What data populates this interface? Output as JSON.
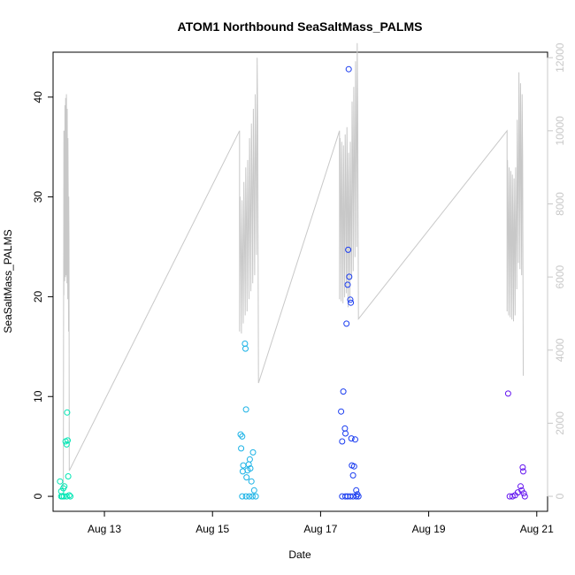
{
  "chart_data": {
    "type": "scatter",
    "title": "ATOM1 Northbound SeaSaltMass_PALMS",
    "xlabel": "Date",
    "ylabel": "SeaSaltMass_PALMS",
    "xlim": [
      12.05,
      21.2
    ],
    "ylim": [
      -1.5,
      44.5
    ],
    "right_ylim": [
      -410,
      12150
    ],
    "x_ticks": [
      {
        "value": 13,
        "label": "Aug 13"
      },
      {
        "value": 15,
        "label": "Aug 15"
      },
      {
        "value": 17,
        "label": "Aug 17"
      },
      {
        "value": 19,
        "label": "Aug 19"
      },
      {
        "value": 21,
        "label": "Aug 21"
      }
    ],
    "y_ticks": [
      0,
      10,
      20,
      30,
      40
    ],
    "right_y_ticks": [
      0,
      2000,
      4000,
      6000,
      8000,
      10000,
      12000
    ],
    "grid": false,
    "colors": {
      "line": "#c8c8c8",
      "flight1": "#00e6b4",
      "flight2": "#1ab2e6",
      "flight3": "#1a3cf0",
      "flight4": "#6414f0"
    },
    "altitude_track": [
      {
        "flight": 1,
        "x_start": 12.25,
        "x_end": 12.35,
        "peaks": [
          10000,
          10700,
          10900,
          11000,
          10600,
          9800,
          8200
        ],
        "end_value": 700
      },
      {
        "flight": 2,
        "x_start": 15.5,
        "x_end": 15.85,
        "peaks": [
          8200,
          8100,
          8600,
          9000,
          9200,
          9800,
          10200,
          10600,
          11000,
          12000
        ],
        "end_value": 3100
      },
      {
        "flight": 3,
        "x_start": 17.35,
        "x_end": 17.7,
        "peaks": [
          9800,
          9700,
          9600,
          9900,
          10100,
          9400,
          9700,
          10800,
          11200,
          11900,
          12400
        ],
        "end_value": 4850
      },
      {
        "flight": 4,
        "x_start": 20.45,
        "x_end": 20.75,
        "peaks": [
          9200,
          9000,
          8900,
          8800,
          8700,
          9000,
          10300,
          11600,
          11300,
          11000
        ],
        "end_value": 3300
      }
    ],
    "series": [
      {
        "name": "",
        "color": "#00e6b4",
        "points": [
          [
            12.18,
            1.5
          ],
          [
            12.2,
            0.5
          ],
          [
            12.22,
            0.0
          ],
          [
            12.24,
            0.8
          ],
          [
            12.26,
            1.0
          ],
          [
            12.28,
            5.5
          ],
          [
            12.3,
            5.2
          ],
          [
            12.31,
            8.4
          ],
          [
            12.32,
            5.6
          ],
          [
            12.33,
            2.0
          ],
          [
            12.35,
            0.1
          ],
          [
            12.37,
            0.0
          ],
          [
            12.2,
            0.0
          ],
          [
            12.25,
            0.0
          ],
          [
            12.3,
            0.0
          ]
        ]
      },
      {
        "name": "",
        "color": "#1ab2e6",
        "points": [
          [
            15.52,
            6.2
          ],
          [
            15.53,
            4.8
          ],
          [
            15.55,
            6.0
          ],
          [
            15.56,
            2.5
          ],
          [
            15.57,
            3.1
          ],
          [
            15.6,
            15.3
          ],
          [
            15.61,
            14.8
          ],
          [
            15.62,
            8.7
          ],
          [
            15.63,
            1.9
          ],
          [
            15.65,
            2.6
          ],
          [
            15.67,
            3.2
          ],
          [
            15.69,
            3.7
          ],
          [
            15.7,
            2.8
          ],
          [
            15.72,
            1.5
          ],
          [
            15.75,
            4.4
          ],
          [
            15.77,
            0.6
          ],
          [
            15.55,
            0.0
          ],
          [
            15.62,
            0.0
          ],
          [
            15.68,
            0.0
          ],
          [
            15.74,
            0.0
          ],
          [
            15.8,
            0.0
          ]
        ]
      },
      {
        "name": "",
        "color": "#1a3cf0",
        "points": [
          [
            17.38,
            8.5
          ],
          [
            17.4,
            5.5
          ],
          [
            17.42,
            10.5
          ],
          [
            17.45,
            6.8
          ],
          [
            17.46,
            6.3
          ],
          [
            17.48,
            17.3
          ],
          [
            17.5,
            21.2
          ],
          [
            17.51,
            24.7
          ],
          [
            17.52,
            42.8
          ],
          [
            17.53,
            22.0
          ],
          [
            17.55,
            19.7
          ],
          [
            17.56,
            19.4
          ],
          [
            17.57,
            5.8
          ],
          [
            17.58,
            3.1
          ],
          [
            17.6,
            2.1
          ],
          [
            17.62,
            3.0
          ],
          [
            17.64,
            5.7
          ],
          [
            17.66,
            0.6
          ],
          [
            17.68,
            0.2
          ],
          [
            17.4,
            0.0
          ],
          [
            17.46,
            0.0
          ],
          [
            17.5,
            0.0
          ],
          [
            17.55,
            0.0
          ],
          [
            17.6,
            0.0
          ],
          [
            17.66,
            0.0
          ],
          [
            17.7,
            0.0
          ]
        ]
      },
      {
        "name": "",
        "color": "#6414f0",
        "points": [
          [
            20.47,
            10.3
          ],
          [
            20.5,
            0.0
          ],
          [
            20.55,
            0.0
          ],
          [
            20.6,
            0.1
          ],
          [
            20.65,
            0.4
          ],
          [
            20.7,
            1.0
          ],
          [
            20.72,
            0.6
          ],
          [
            20.74,
            2.9
          ],
          [
            20.75,
            2.5
          ],
          [
            20.76,
            0.3
          ],
          [
            20.78,
            0.0
          ]
        ]
      }
    ]
  }
}
